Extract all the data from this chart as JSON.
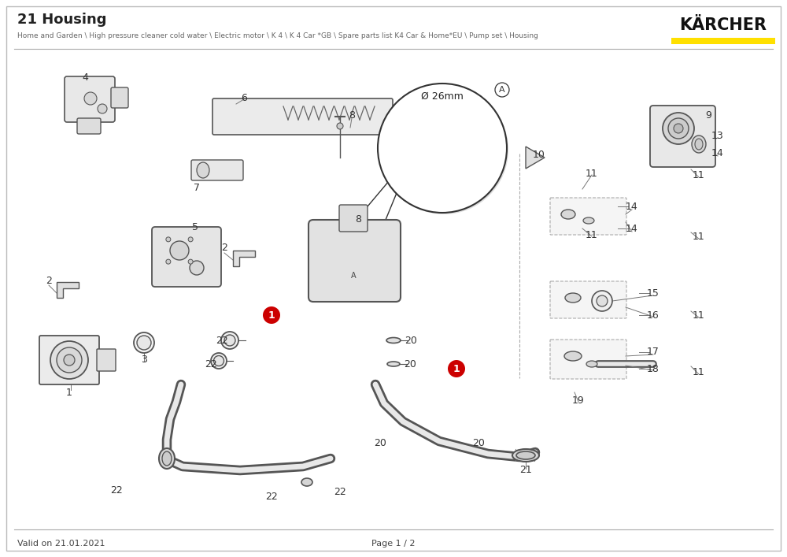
{
  "title": "21 Housing",
  "subtitle": "Home and Garden \\ High pressure cleaner cold water \\ Electric motor \\ K 4 \\ K 4 Car *GB \\ Spare parts list K4 Car & Home*EU \\ Pump set \\ Housing",
  "brand": "KÄRCHER",
  "footer_left": "Valid on 21.01.2021",
  "footer_center": "Page 1 / 2",
  "background_color": "#ffffff",
  "yellow_color": "#FFE000",
  "red_badge_color": "#cc0000",
  "figsize": [
    10.0,
    7.07
  ],
  "dpi": 100
}
